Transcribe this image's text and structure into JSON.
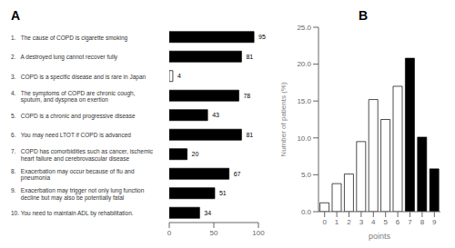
{
  "chart_data": [
    {
      "type": "bar",
      "title": "A",
      "orientation": "horizontal",
      "categories": [
        "1.   The cause of COPD is cigarette smoking",
        "2.   A destroyed lung cannot recover fully",
        "3.   COPD is a specific disease and is rare in Japan",
        "4.   The symptoms of COPD are chronic cough,\n      sputum, and dyspnea on exertion",
        "5.   COPD is a chronic and progressive disease",
        "6.   You may need LTOT if COPD is advanced",
        "7.   COPD has comorbidities such as cancer, ischemic\n      heart failure and cerebrovascular disease",
        "8.   Exacerbation may occur because of flu and\n      pneumonia",
        "9.   Exacerbation may trigger not only lung function\n      decline but may also be potentially fatal",
        "10. You need to maintain ADL by rehabilitation."
      ],
      "values": [
        95,
        81,
        4,
        78,
        43,
        81,
        20,
        67,
        51,
        34
      ],
      "colors": [
        "black",
        "black",
        "white",
        "black",
        "black",
        "black",
        "black",
        "black",
        "black",
        "black"
      ],
      "xlim": [
        0,
        100
      ],
      "xticks": [
        0,
        50,
        100
      ],
      "data_labels": true
    },
    {
      "type": "bar",
      "title": "B",
      "categories": [
        "0",
        "1",
        "2",
        "3",
        "4",
        "5",
        "6",
        "7",
        "8",
        "9"
      ],
      "values": [
        1.2,
        3.8,
        5.1,
        9.5,
        15.2,
        12.5,
        17.0,
        20.8,
        10.1,
        5.8
      ],
      "colors": [
        "white",
        "white",
        "white",
        "white",
        "white",
        "white",
        "white",
        "black",
        "black",
        "black"
      ],
      "xlabel": "points",
      "ylabel": "Number of patients (%)",
      "ylim": [
        0,
        25
      ],
      "yticks": [
        {
          "value": 0,
          "label": "0.0"
        },
        {
          "value": 5,
          "label": "5.0"
        },
        {
          "value": 10,
          "label": "10.0"
        },
        {
          "value": 15,
          "label": "15.0"
        },
        {
          "value": 20,
          "label": "20.0"
        },
        {
          "value": 25,
          "label": "25.0"
        }
      ]
    }
  ]
}
